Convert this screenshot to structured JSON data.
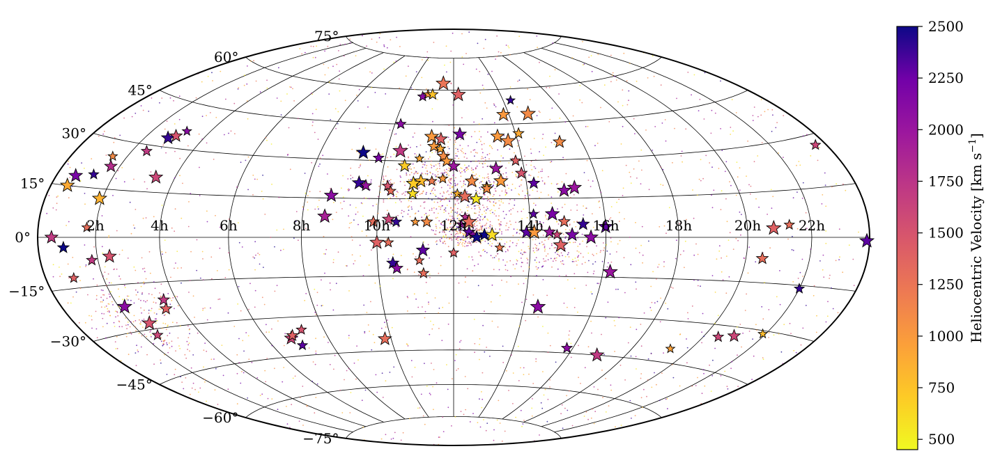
{
  "chart_data": {
    "type": "scatter",
    "projection": "Aitoff/Hammer all-sky map",
    "x_axis": {
      "tick_labels": [
        "2h",
        "4h",
        "6h",
        "8h",
        "10h",
        "12h",
        "14h",
        "16h",
        "18h",
        "20h",
        "22h"
      ],
      "tick_ra_hours": [
        2,
        4,
        6,
        8,
        10,
        12,
        14,
        16,
        18,
        20,
        22
      ]
    },
    "y_axis": {
      "tick_labels": [
        "75°",
        "60°",
        "45°",
        "30°",
        "15°",
        "0°",
        "−15°",
        "−30°",
        "−45°",
        "−60°",
        "−75°"
      ],
      "tick_dec_deg": [
        75,
        60,
        45,
        30,
        15,
        0,
        -15,
        -30,
        -45,
        -60,
        -75
      ]
    },
    "grid": true,
    "colorbar": {
      "label": "Heliocentric Velocity [km s",
      "label_sup": "−1",
      "label_end": "]",
      "range": [
        450,
        2500
      ],
      "ticks": [
        500,
        750,
        1000,
        1250,
        1500,
        1750,
        2000,
        2250,
        2500
      ],
      "tick_labels": [
        "500",
        "750",
        "1000",
        "1250",
        "1500",
        "1750",
        "2000",
        "2250",
        "2500"
      ],
      "colormap": "plasma",
      "orientation": "vertical",
      "placement": "right"
    },
    "star_points": [
      {
        "ra_h": 11.5,
        "dec": 63,
        "v": 1250
      },
      {
        "ra_h": 10.7,
        "dec": 57,
        "v": 2100
      },
      {
        "ra_h": 10.9,
        "dec": 58,
        "v": 1000
      },
      {
        "ra_h": 11.1,
        "dec": 58,
        "v": 750
      },
      {
        "ra_h": 12.2,
        "dec": 58,
        "v": 1400
      },
      {
        "ra_h": 14.3,
        "dec": 55,
        "v": 2400
      },
      {
        "ra_h": 13.8,
        "dec": 49,
        "v": 1000
      },
      {
        "ra_h": 14.7,
        "dec": 49,
        "v": 1100
      },
      {
        "ra_h": 15.3,
        "dec": 37,
        "v": 1100
      },
      {
        "ra_h": 10.2,
        "dec": 45,
        "v": 2100
      },
      {
        "ra_h": 11.3,
        "dec": 40,
        "v": 1000
      },
      {
        "ra_h": 11.6,
        "dec": 39,
        "v": 1400
      },
      {
        "ra_h": 11.4,
        "dec": 36,
        "v": 1000
      },
      {
        "ra_h": 11.6,
        "dec": 35,
        "v": 900
      },
      {
        "ra_h": 11.7,
        "dec": 32,
        "v": 1100
      },
      {
        "ra_h": 11.8,
        "dec": 30,
        "v": 1000
      },
      {
        "ra_h": 12.2,
        "dec": 41,
        "v": 2200
      },
      {
        "ra_h": 13.4,
        "dec": 40,
        "v": 1000
      },
      {
        "ra_h": 13.7,
        "dec": 38,
        "v": 1100
      },
      {
        "ra_h": 14.1,
        "dec": 41,
        "v": 900
      },
      {
        "ra_h": 9.3,
        "dec": 33,
        "v": 2500
      },
      {
        "ra_h": 9.8,
        "dec": 31,
        "v": 2200
      },
      {
        "ra_h": 10.4,
        "dec": 34,
        "v": 1700
      },
      {
        "ra_h": 11.0,
        "dec": 31,
        "v": 900
      },
      {
        "ra_h": 10.6,
        "dec": 28,
        "v": 700
      },
      {
        "ra_h": 12.0,
        "dec": 28,
        "v": 2000
      },
      {
        "ra_h": 13.2,
        "dec": 27,
        "v": 2000
      },
      {
        "ra_h": 13.8,
        "dec": 30,
        "v": 1400
      },
      {
        "ra_h": 13.9,
        "dec": 25,
        "v": 1500
      },
      {
        "ra_h": 11.1,
        "dec": 22,
        "v": 800
      },
      {
        "ra_h": 10.9,
        "dec": 21,
        "v": 700
      },
      {
        "ra_h": 11.4,
        "dec": 22,
        "v": 1200
      },
      {
        "ra_h": 11.7,
        "dec": 23,
        "v": 1000
      },
      {
        "ra_h": 12.5,
        "dec": 22,
        "v": 1100
      },
      {
        "ra_h": 12.9,
        "dec": 20,
        "v": 800
      },
      {
        "ra_h": 13.3,
        "dec": 22,
        "v": 1000
      },
      {
        "ra_h": 10.2,
        "dec": 20,
        "v": 1500
      },
      {
        "ra_h": 10.3,
        "dec": 18,
        "v": 1300
      },
      {
        "ra_h": 9.4,
        "dec": 21,
        "v": 2400
      },
      {
        "ra_h": 9.6,
        "dec": 20,
        "v": 2000
      },
      {
        "ra_h": 10.9,
        "dec": 17,
        "v": 600
      },
      {
        "ra_h": 12.1,
        "dec": 17,
        "v": 850
      },
      {
        "ra_h": 12.3,
        "dec": 16,
        "v": 1300
      },
      {
        "ra_h": 12.6,
        "dec": 15,
        "v": 550
      },
      {
        "ra_h": 12.9,
        "dec": 19,
        "v": 1100
      },
      {
        "ra_h": 14.2,
        "dec": 21,
        "v": 2300
      },
      {
        "ra_h": 15.0,
        "dec": 18,
        "v": 2100
      },
      {
        "ra_h": 15.3,
        "dec": 19,
        "v": 2000
      },
      {
        "ra_h": 8.7,
        "dec": 16,
        "v": 2100
      },
      {
        "ra_h": 8.6,
        "dec": 8,
        "v": 1900
      },
      {
        "ra_h": 9.9,
        "dec": 6,
        "v": 1300
      },
      {
        "ra_h": 10.3,
        "dec": 7,
        "v": 1600
      },
      {
        "ra_h": 10.5,
        "dec": 6,
        "v": 2400
      },
      {
        "ra_h": 11.0,
        "dec": 6,
        "v": 1000
      },
      {
        "ra_h": 11.3,
        "dec": 6,
        "v": 1100
      },
      {
        "ra_h": 12.3,
        "dec": 8,
        "v": 1800
      },
      {
        "ra_h": 12.4,
        "dec": 6,
        "v": 1300
      },
      {
        "ra_h": 12.2,
        "dec": 5,
        "v": 2000
      },
      {
        "ra_h": 14.1,
        "dec": 9,
        "v": 2300
      },
      {
        "ra_h": 14.6,
        "dec": 9,
        "v": 2200
      },
      {
        "ra_h": 14.9,
        "dec": 6,
        "v": 1300
      },
      {
        "ra_h": 15.4,
        "dec": 5,
        "v": 2400
      },
      {
        "ra_h": 16.0,
        "dec": 4,
        "v": 2300
      },
      {
        "ra_h": 12.4,
        "dec": 2,
        "v": 2300
      },
      {
        "ra_h": 12.5,
        "dec": 1,
        "v": 2100
      },
      {
        "ra_h": 12.6,
        "dec": 0,
        "v": 2500
      },
      {
        "ra_h": 12.8,
        "dec": 1,
        "v": 2500
      },
      {
        "ra_h": 13.0,
        "dec": 1,
        "v": 600
      },
      {
        "ra_h": 13.9,
        "dec": 2,
        "v": 2300
      },
      {
        "ra_h": 14.1,
        "dec": 2,
        "v": 1000
      },
      {
        "ra_h": 14.5,
        "dec": 2,
        "v": 2000
      },
      {
        "ra_h": 14.7,
        "dec": 1,
        "v": 1600
      },
      {
        "ra_h": 15.1,
        "dec": 1,
        "v": 2200
      },
      {
        "ra_h": 15.6,
        "dec": 0,
        "v": 2100
      },
      {
        "ra_h": 10.0,
        "dec": -2,
        "v": 1400
      },
      {
        "ra_h": 10.3,
        "dec": -2,
        "v": 1300
      },
      {
        "ra_h": 11.2,
        "dec": -5,
        "v": 2300
      },
      {
        "ra_h": 12.0,
        "dec": -6,
        "v": 1400
      },
      {
        "ra_h": 13.2,
        "dec": -4,
        "v": 1200
      },
      {
        "ra_h": 14.8,
        "dec": -3,
        "v": 1400
      },
      {
        "ra_h": 11.1,
        "dec": -9,
        "v": 1300
      },
      {
        "ra_h": 10.4,
        "dec": -10,
        "v": 2400
      },
      {
        "ra_h": 16.2,
        "dec": -13,
        "v": 2000
      },
      {
        "ra_h": 10.5,
        "dec": -12,
        "v": 2100
      },
      {
        "ra_h": 11.2,
        "dec": -14,
        "v": 1300
      },
      {
        "ra_h": 1.8,
        "dec": -7,
        "v": 1700
      },
      {
        "ra_h": 2.4,
        "dec": -6,
        "v": 1500
      },
      {
        "ra_h": 1.0,
        "dec": -12,
        "v": 1400
      },
      {
        "ra_h": 0.5,
        "dec": 0,
        "v": 1700
      },
      {
        "ra_h": 0.9,
        "dec": -3,
        "v": 2500
      },
      {
        "ra_h": 1.7,
        "dec": 3,
        "v": 1300
      },
      {
        "ra_h": 1.9,
        "dec": 12,
        "v": 850
      },
      {
        "ra_h": 0.6,
        "dec": 15,
        "v": 900
      },
      {
        "ra_h": 0.7,
        "dec": 18,
        "v": 2200
      },
      {
        "ra_h": 1.3,
        "dec": 19,
        "v": 2400
      },
      {
        "ra_h": 1.7,
        "dec": 22,
        "v": 1800
      },
      {
        "ra_h": 1.5,
        "dec": 25,
        "v": 1100
      },
      {
        "ra_h": 3.4,
        "dec": 20,
        "v": 1600
      },
      {
        "ra_h": 2.5,
        "dec": 28,
        "v": 1700
      },
      {
        "ra_h": 2.8,
        "dec": 33,
        "v": 2400
      },
      {
        "ra_h": 3.0,
        "dec": 34,
        "v": 1500
      },
      {
        "ra_h": 3.2,
        "dec": 36,
        "v": 2100
      },
      {
        "ra_h": 2.2,
        "dec": -22,
        "v": 2100
      },
      {
        "ra_h": 3.5,
        "dec": -24,
        "v": 1400
      },
      {
        "ra_h": 2.6,
        "dec": -28,
        "v": 1500
      },
      {
        "ra_h": 3.6,
        "dec": -21,
        "v": 1700
      },
      {
        "ra_h": 2.5,
        "dec": -32,
        "v": 1600
      },
      {
        "ra_h": 6.8,
        "dec": -38,
        "v": 1600
      },
      {
        "ra_h": 6.9,
        "dec": -37,
        "v": 1400
      },
      {
        "ra_h": 7.0,
        "dec": -41,
        "v": 2300
      },
      {
        "ra_h": 7.3,
        "dec": -35,
        "v": 1500
      },
      {
        "ra_h": 9.8,
        "dec": -40,
        "v": 1300
      },
      {
        "ra_h": 14.4,
        "dec": -27,
        "v": 2100
      },
      {
        "ra_h": 15.8,
        "dec": -43,
        "v": 2100
      },
      {
        "ra_h": 17.0,
        "dec": -45,
        "v": 1700
      },
      {
        "ra_h": 19.3,
        "dec": -40,
        "v": 950
      },
      {
        "ra_h": 20.5,
        "dec": -34,
        "v": 1600
      },
      {
        "ra_h": 21.0,
        "dec": -33,
        "v": 1600
      },
      {
        "ra_h": 21.9,
        "dec": -31,
        "v": 800
      },
      {
        "ra_h": 22.0,
        "dec": -16,
        "v": 2400
      },
      {
        "ra_h": 20.5,
        "dec": -7,
        "v": 1300
      },
      {
        "ra_h": 20.8,
        "dec": 3,
        "v": 1400
      },
      {
        "ra_h": 21.3,
        "dec": 4,
        "v": 1300
      },
      {
        "ra_h": 23.6,
        "dec": 27,
        "v": 1600
      },
      {
        "ra_h": 23.9,
        "dec": -1,
        "v": 2300
      }
    ]
  }
}
